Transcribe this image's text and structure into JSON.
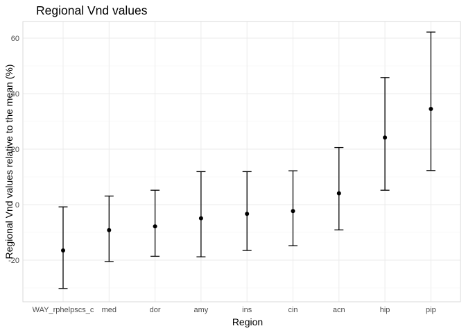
{
  "chart_data": {
    "type": "scatter",
    "title": "Regional Vnd values",
    "xlabel": "Region",
    "ylabel": "Regional Vnd values relative to the mean (%)",
    "categories": [
      "WAY_rphelpscs_c",
      "med",
      "dor",
      "amy",
      "ins",
      "cin",
      "acn",
      "hip",
      "pip"
    ],
    "series": [
      {
        "values": [
          -16.5,
          -9.2,
          -7.8,
          -4.9,
          -3.3,
          -2.3,
          4.1,
          24.2,
          34.5
        ],
        "lower": [
          -30.2,
          -20.5,
          -18.6,
          -18.8,
          -16.5,
          -14.8,
          -9.1,
          5.2,
          12.3
        ],
        "upper": [
          -0.8,
          3.1,
          5.2,
          11.9,
          11.9,
          12.2,
          20.6,
          45.8,
          62.2
        ]
      }
    ],
    "ylim": [
      -35,
      66
    ],
    "yticks": [
      -20,
      0,
      20,
      40,
      60
    ],
    "yticklabels": [
      "-20",
      "0",
      "20",
      "40",
      "60"
    ],
    "grid": true,
    "legend": "none"
  }
}
